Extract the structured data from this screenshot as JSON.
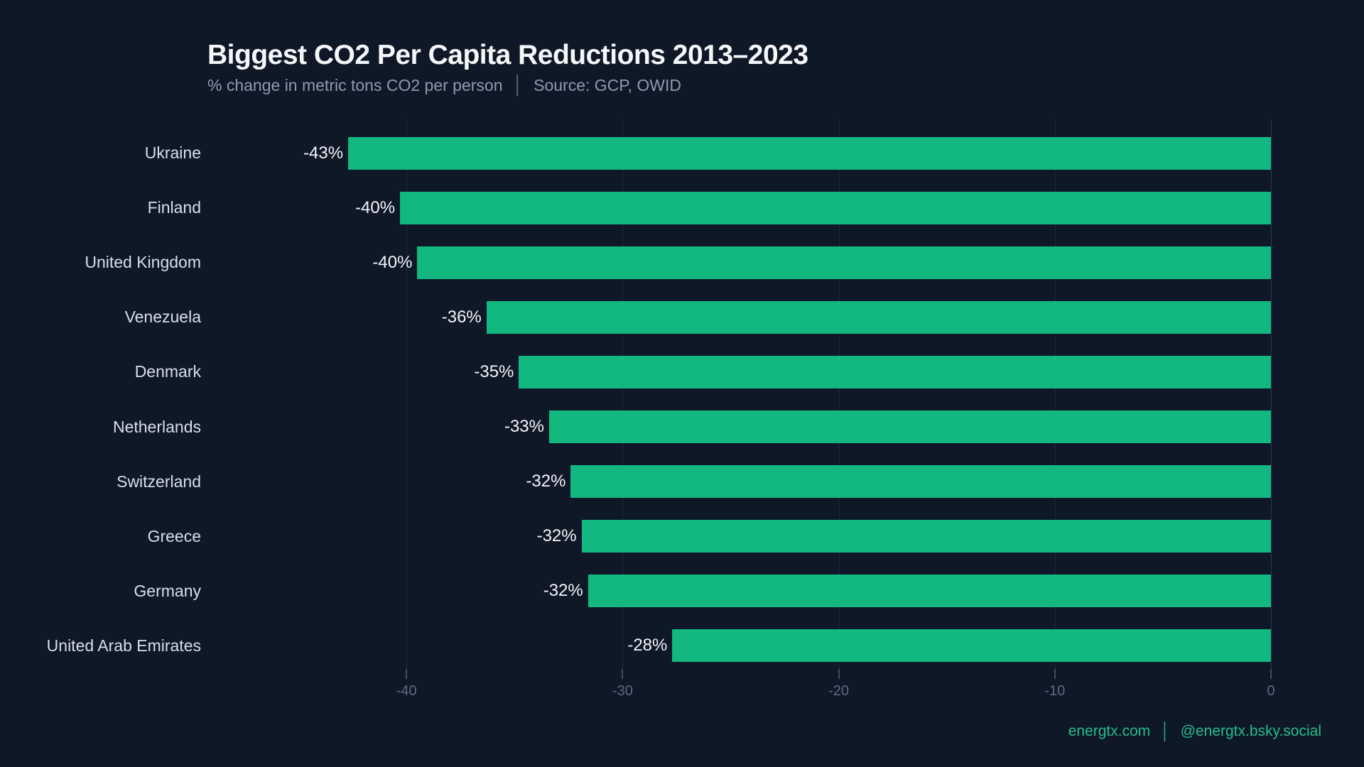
{
  "header": {
    "title": "Biggest CO2 Per Capita Reductions 2013–2023",
    "subtitle_left": "% change in metric tons CO2 per person",
    "subtitle_separator": "│",
    "subtitle_right": "Source: GCP, OWID"
  },
  "chart_data": {
    "type": "bar",
    "orientation": "horizontal",
    "title": "Biggest CO2 Per Capita Reductions 2013–2023",
    "subtitle": "% change in metric tons CO2 per person | Source: GCP, OWID",
    "categories": [
      "Ukraine",
      "Finland",
      "United Kingdom",
      "Venezuela",
      "Denmark",
      "Netherlands",
      "Switzerland",
      "Greece",
      "Germany",
      "United Arab Emirates"
    ],
    "values": [
      -42.7,
      -40.3,
      -39.5,
      -36.3,
      -34.8,
      -33.4,
      -32.4,
      -31.9,
      -31.6,
      -27.7
    ],
    "value_labels": [
      "-43%",
      "-40%",
      "-40%",
      "-36%",
      "-35%",
      "-33%",
      "-32%",
      "-32%",
      "-32%",
      "-28%"
    ],
    "x_tick_values": [
      -40,
      -30,
      -20,
      -10,
      0
    ],
    "x_tick_labels": [
      "-40",
      "-30",
      "-20",
      "-10",
      "0"
    ],
    "xlim": [
      -45,
      0
    ],
    "grid": "vertical-dashed",
    "legend": "none",
    "bar_color": "#12b880"
  },
  "footer": {
    "site": "energtx.com",
    "separator": "│",
    "social": "@energtx.bsky.social"
  },
  "colors": {
    "background": "#0f1827",
    "bar": "#12b880",
    "title": "#f5f8fb",
    "subtitle": "#8d9bb0",
    "country_label": "#d8dfe9",
    "value_label": "#f2f5f9",
    "tick_label": "#5d6c82",
    "gridline": "#223247",
    "footer_accent": "#25bd88"
  }
}
